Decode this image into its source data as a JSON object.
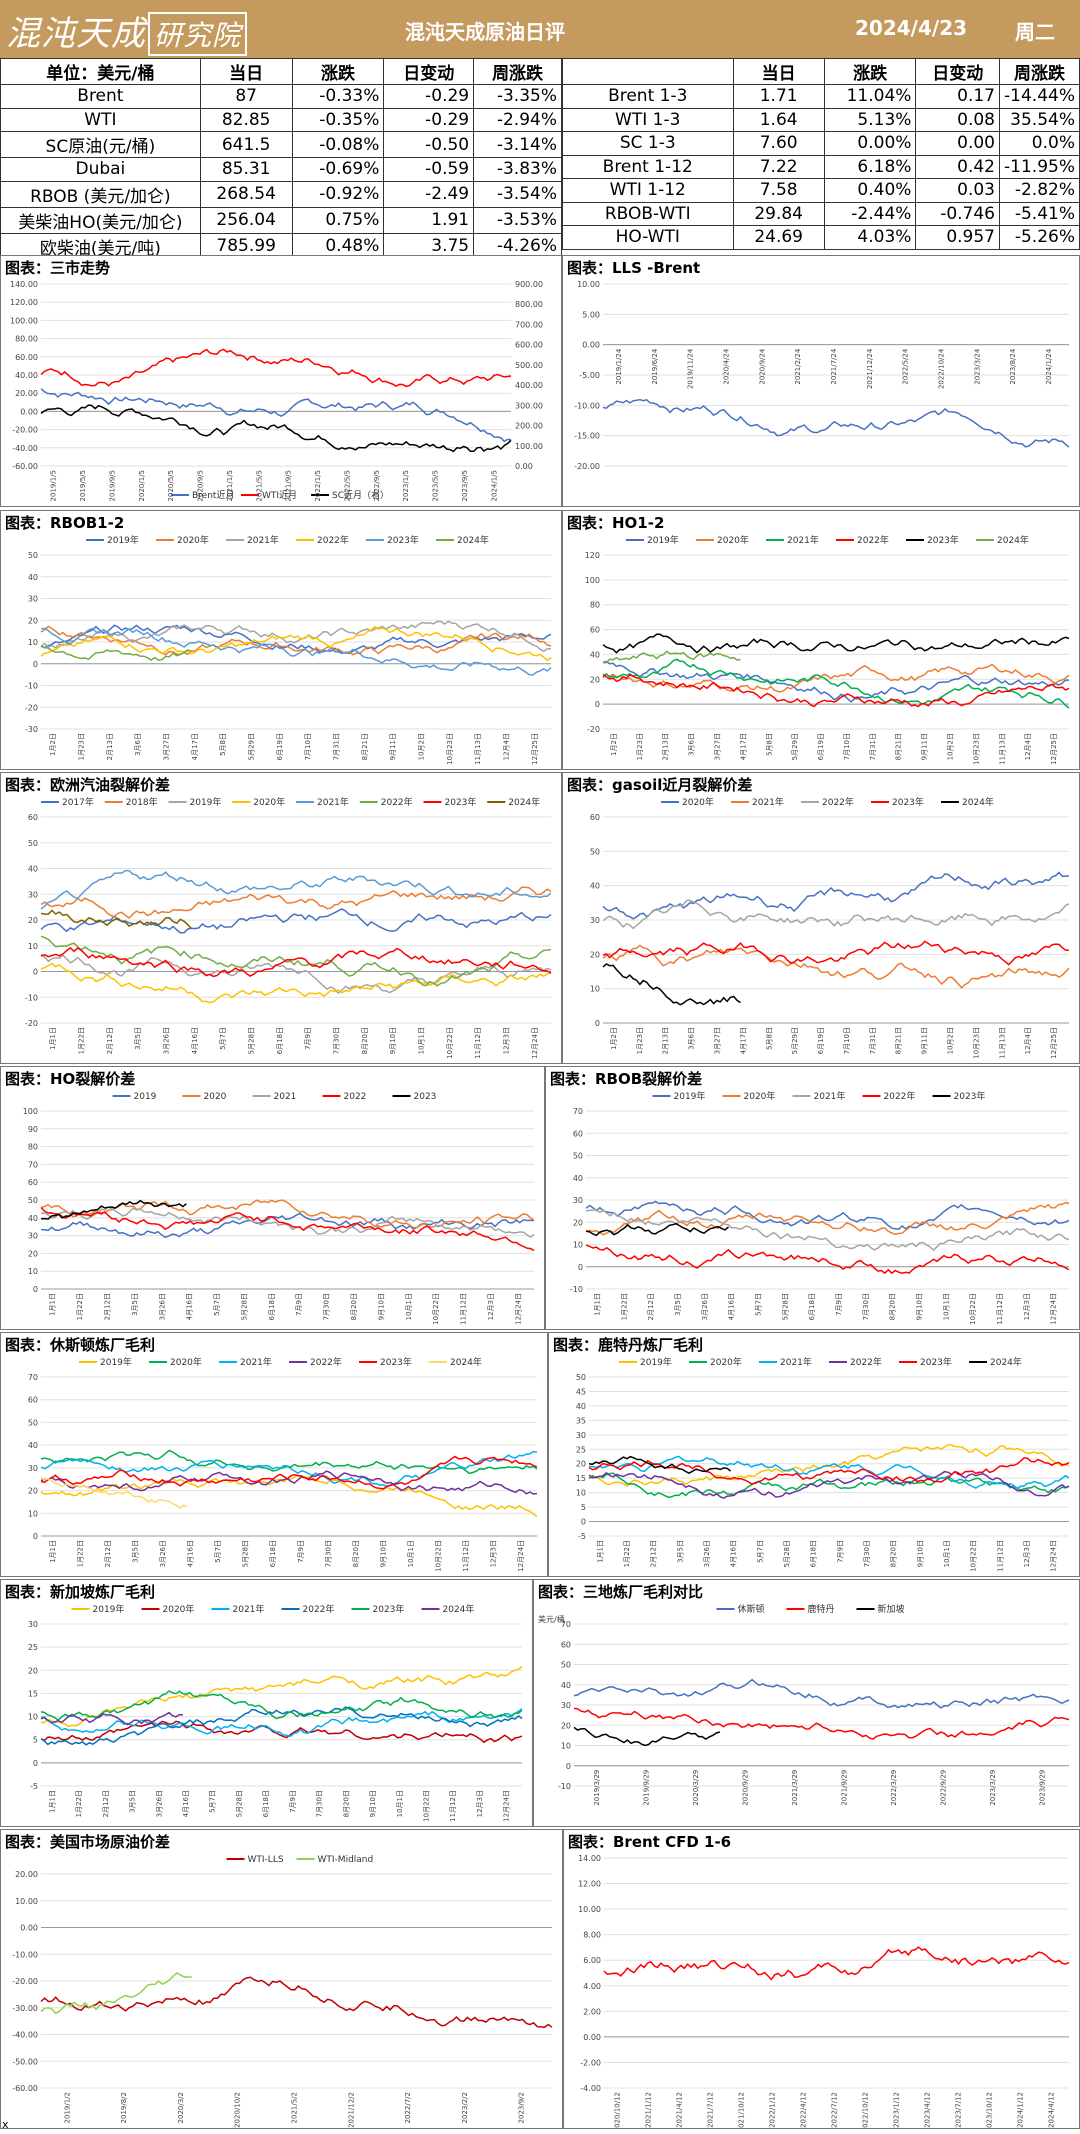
{
  "header": {
    "logo_text": "混沌天成",
    "logo_box": "研究院",
    "title": "混沌天成原油日评",
    "date": "2024/4/23",
    "weekday": "周二"
  },
  "left_table": {
    "headers": [
      "单位：美元/桶",
      "当日",
      "涨跌",
      "日变动",
      "周涨跌"
    ],
    "rows": [
      [
        "Brent",
        "87",
        "-0.33%",
        "-0.29",
        "-3.35%"
      ],
      [
        "WTI",
        "82.85",
        "-0.35%",
        "-0.29",
        "-2.94%"
      ],
      [
        "SC原油(元/桶)",
        "641.5",
        "-0.08%",
        "-0.50",
        "-3.14%"
      ],
      [
        "Dubai",
        "85.31",
        "-0.69%",
        "-0.59",
        "-3.83%"
      ],
      [
        "RBOB (美元/加仑)",
        "268.54",
        "-0.92%",
        "-2.49",
        "-3.54%"
      ],
      [
        "美柴油HO(美元/加仑)",
        "256.04",
        "0.75%",
        "1.91",
        "-3.53%"
      ],
      [
        "欧柴油(美元/吨)",
        "785.99",
        "0.48%",
        "3.75",
        "-4.26%"
      ]
    ]
  },
  "right_table": {
    "headers": [
      "",
      "当日",
      "涨跌",
      "日变动",
      "周涨跌"
    ],
    "rows": [
      [
        "Brent 1-3",
        "1.71",
        "11.04%",
        "0.17",
        "-14.44%"
      ],
      [
        "WTI 1-3",
        "1.64",
        "5.13%",
        "0.08",
        "35.54%"
      ],
      [
        "SC 1-3",
        "7.60",
        "0.00%",
        "0.00",
        "0.0%"
      ],
      [
        "Brent 1-12",
        "7.22",
        "6.18%",
        "0.42",
        "-11.95%"
      ],
      [
        "WTI 1-12",
        "7.58",
        "0.40%",
        "0.03",
        "-2.82%"
      ],
      [
        "RBOB-WTI",
        "29.84",
        "-2.44%",
        "-0.746",
        "-5.41%"
      ],
      [
        "HO-WTI",
        "24.69",
        "4.03%",
        "0.957",
        "-5.26%"
      ]
    ]
  },
  "charts": [
    {
      "name": "chart-three-markets",
      "title": "图表：三市走势",
      "type": "line",
      "ylim": [
        -60,
        140
      ],
      "yticks": [
        "140.00",
        "120.00",
        "100.00",
        "80.00",
        "60.00",
        "40.00",
        "20.00",
        "0.00",
        "-20.00",
        "-40.00",
        "-60.00"
      ],
      "y2ticks": [
        "900.00",
        "800.00",
        "700.00",
        "600.00",
        "500.00",
        "400.00",
        "300.00",
        "200.00",
        "100.00",
        "0.00"
      ],
      "xticks": [
        "2019/1/5",
        "2019/5/5",
        "2019/9/5",
        "2020/1/5",
        "2020/5/5",
        "2020/9/5",
        "2021/1/5",
        "2021/5/5",
        "2021/9/5",
        "2022/1/5",
        "2022/5/5",
        "2022/9/5",
        "2023/1/5",
        "2023/5/5",
        "2023/9/5",
        "2024/1/5"
      ],
      "legend": [
        "Brent近月",
        "WTI近月",
        "SC近月（右）"
      ],
      "colors": [
        "#4472c4",
        "#ff0000",
        "#000000"
      ],
      "series_shape": [
        [
          60,
          58,
          30,
          45,
          65,
          70,
          95,
          110,
          92,
          80,
          84,
          82,
          88
        ],
        [
          55,
          52,
          -10,
          40,
          60,
          67,
          92,
          105,
          88,
          78,
          80,
          78,
          84
        ],
        [
          420,
          400,
          250,
          280,
          350,
          420,
          520,
          700,
          650,
          560,
          600,
          620,
          640
        ]
      ]
    },
    {
      "name": "chart-lls-brent",
      "title": "图表：LLS -Brent",
      "type": "line",
      "ylim": [
        -20,
        10
      ],
      "yticks": [
        "10.00",
        "5.00",
        "0.00",
        "-5.00",
        "-10.00",
        "-15.00",
        "-20.00"
      ],
      "xticks": [
        "2019/1/24",
        "2019/6/24",
        "2019/11/24",
        "2020/4/24",
        "2020/9/24",
        "2021/2/24",
        "2021/7/24",
        "2021/12/24",
        "2022/5/24",
        "2022/10/24",
        "2023/3/24",
        "2023/8/24",
        "2024/1/24"
      ],
      "legend": [],
      "colors": [
        "#4472c4"
      ]
    },
    {
      "name": "chart-rbob-1-2",
      "title": "图表：RBOB1-2",
      "type": "line",
      "ylim": [
        -30,
        50
      ],
      "yticks": [
        "50",
        "40",
        "30",
        "20",
        "10",
        "0",
        "-10",
        "-20",
        "-30"
      ],
      "xticks": [
        "1月2日",
        "1月23日",
        "2月13日",
        "3月6日",
        "3月27日",
        "4月17日",
        "5月8日",
        "5月29日",
        "6月19日",
        "7月10日",
        "7月31日",
        "8月21日",
        "9月11日",
        "10月2日",
        "10月23日",
        "11月13日",
        "12月4日",
        "12月25日"
      ],
      "legend": [
        "2019年",
        "2020年",
        "2021年",
        "2022年",
        "2023年",
        "2024年"
      ],
      "colors": [
        "#4472c4",
        "#ed7d31",
        "#a5a5a5",
        "#ffc000",
        "#5b9bd5",
        "#70ad47"
      ]
    },
    {
      "name": "chart-ho-1-2",
      "title": "图表：HO1-2",
      "type": "line",
      "ylim": [
        -20,
        120
      ],
      "yticks": [
        "120",
        "100",
        "80",
        "60",
        "40",
        "20",
        "0",
        "-20"
      ],
      "xticks": [
        "1月2日",
        "1月23日",
        "2月13日",
        "3月6日",
        "3月27日",
        "4月17日",
        "5月8日",
        "5月29日",
        "6月19日",
        "7月10日",
        "7月31日",
        "8月21日",
        "9月11日",
        "10月2日",
        "10月23日",
        "11月13日",
        "12月4日",
        "12月25日"
      ],
      "legend": [
        "2019年",
        "2020年",
        "2021年",
        "2022年",
        "2023年",
        "2024年"
      ],
      "colors": [
        "#4472c4",
        "#ed7d31",
        "#00b050",
        "#ff0000",
        "#000000",
        "#70ad47"
      ]
    },
    {
      "name": "chart-eu-gasoline-crack",
      "title": "图表：欧洲汽油裂解价差",
      "type": "line",
      "ylim": [
        -20,
        60
      ],
      "yticks": [
        "60",
        "50",
        "40",
        "30",
        "20",
        "10",
        "0",
        "-10",
        "-20"
      ],
      "xticks": [
        "1月1日",
        "1月22日",
        "2月12日",
        "3月5日",
        "3月26日",
        "4月16日",
        "5月7日",
        "5月28日",
        "6月18日",
        "7月9日",
        "7月30日",
        "8月20日",
        "9月10日",
        "10月1日",
        "10月22日",
        "11月12日",
        "12月3日",
        "12月24日"
      ],
      "legend": [
        "2017年",
        "2018年",
        "2019年",
        "2020年",
        "2021年",
        "2022年",
        "2023年",
        "2024年"
      ],
      "colors": [
        "#4472c4",
        "#ed7d31",
        "#a5a5a5",
        "#ffc000",
        "#5b9bd5",
        "#70ad47",
        "#ff0000",
        "#7f6000"
      ]
    },
    {
      "name": "chart-gasoil-crack",
      "title": "图表：gasoil近月裂解价差",
      "type": "line",
      "ylim": [
        0,
        60
      ],
      "yticks": [
        "60",
        "50",
        "40",
        "30",
        "20",
        "10",
        "0"
      ],
      "xticks": [
        "1月2日",
        "1月23日",
        "2月13日",
        "3月6日",
        "3月27日",
        "4月17日",
        "5月8日",
        "5月29日",
        "6月19日",
        "7月10日",
        "7月31日",
        "8月21日",
        "9月11日",
        "10月2日",
        "10月23日",
        "11月13日",
        "12月4日",
        "12月25日"
      ],
      "legend": [
        "2020年",
        "2021年",
        "2022年",
        "2023年",
        "2024年"
      ],
      "colors": [
        "#4472c4",
        "#ed7d31",
        "#a5a5a5",
        "#ff0000",
        "#000000"
      ]
    },
    {
      "name": "chart-ho-crack",
      "title": "图表：HO裂解价差",
      "type": "line",
      "ylim": [
        0,
        100
      ],
      "yticks": [
        "100",
        "90",
        "80",
        "70",
        "60",
        "50",
        "40",
        "30",
        "20",
        "10",
        "0"
      ],
      "xticks": [
        "1月1日",
        "1月22日",
        "2月12日",
        "3月5日",
        "3月26日",
        "4月16日",
        "5月7日",
        "5月28日",
        "6月18日",
        "7月9日",
        "7月30日",
        "8月20日",
        "9月10日",
        "10月1日",
        "10月22日",
        "11月12日",
        "12月3日",
        "12月24日"
      ],
      "legend": [
        "2019",
        "2020",
        "2021",
        "2022",
        "2023"
      ],
      "colors": [
        "#4472c4",
        "#ed7d31",
        "#a5a5a5",
        "#ff0000",
        "#000000"
      ]
    },
    {
      "name": "chart-rbob-crack",
      "title": "图表：RBOB裂解价差",
      "type": "line",
      "ylim": [
        -10,
        70
      ],
      "yticks": [
        "70",
        "60",
        "50",
        "40",
        "30",
        "20",
        "10",
        "0",
        "-10"
      ],
      "xticks": [
        "1月1日",
        "1月22日",
        "2月12日",
        "3月5日",
        "3月26日",
        "4月16日",
        "5月7日",
        "5月28日",
        "6月18日",
        "7月9日",
        "7月30日",
        "8月20日",
        "9月10日",
        "10月1日",
        "10月22日",
        "11月12日",
        "12月3日",
        "12月24日"
      ],
      "legend": [
        "2019年",
        "2020年",
        "2021年",
        "2022年",
        "2023年"
      ],
      "colors": [
        "#4472c4",
        "#ed7d31",
        "#a5a5a5",
        "#ff0000",
        "#000000"
      ]
    },
    {
      "name": "chart-houston-margin",
      "title": "图表：休斯顿炼厂毛利",
      "type": "line",
      "ylim": [
        0,
        70
      ],
      "yticks": [
        "70",
        "60",
        "50",
        "40",
        "30",
        "20",
        "10",
        "0"
      ],
      "xticks": [
        "1月1日",
        "1月22日",
        "2月12日",
        "3月5日",
        "3月26日",
        "4月16日",
        "5月7日",
        "5月28日",
        "6月18日",
        "7月9日",
        "7月30日",
        "8月20日",
        "9月10日",
        "10月1日",
        "10月22日",
        "11月12日",
        "12月3日",
        "12月24日"
      ],
      "legend": [
        "2019年",
        "2020年",
        "2021年",
        "2022年",
        "2023年",
        "2024年"
      ],
      "colors": [
        "#ffc000",
        "#00b050",
        "#00b0f0",
        "#7030a0",
        "#ff0000",
        "#ffd966"
      ]
    },
    {
      "name": "chart-rotterdam-margin",
      "title": "图表：鹿特丹炼厂毛利",
      "type": "line",
      "ylim": [
        -5,
        50
      ],
      "yticks": [
        "50",
        "45",
        "40",
        "35",
        "30",
        "25",
        "20",
        "15",
        "10",
        "5",
        "0",
        "-5"
      ],
      "xticks": [
        "1月1日",
        "1月22日",
        "2月12日",
        "3月5日",
        "3月26日",
        "4月16日",
        "5月7日",
        "5月28日",
        "6月18日",
        "7月9日",
        "7月30日",
        "8月20日",
        "9月10日",
        "10月1日",
        "10月22日",
        "11月12日",
        "12月3日",
        "12月24日"
      ],
      "legend": [
        "2019年",
        "2020年",
        "2021年",
        "2022年",
        "2023年",
        "2024年"
      ],
      "colors": [
        "#ffc000",
        "#00b050",
        "#00b0f0",
        "#7030a0",
        "#ff0000",
        "#000000"
      ]
    },
    {
      "name": "chart-singapore-margin",
      "title": "图表：新加坡炼厂毛利",
      "type": "line",
      "ylim": [
        -5,
        30
      ],
      "yticks": [
        "30",
        "25",
        "20",
        "15",
        "10",
        "5",
        "0",
        "-5"
      ],
      "xticks": [
        "1月1日",
        "1月22日",
        "2月12日",
        "3月5日",
        "3月26日",
        "4月16日",
        "5月7日",
        "5月28日",
        "6月18日",
        "7月9日",
        "7月30日",
        "8月20日",
        "9月10日",
        "10月1日",
        "10月22日",
        "11月12日",
        "12月3日",
        "12月24日"
      ],
      "legend": [
        "2019年",
        "2020年",
        "2021年",
        "2022年",
        "2023年",
        "2024年"
      ],
      "colors": [
        "#ffc000",
        "#c00000",
        "#00b0f0",
        "#0070c0",
        "#00b050",
        "#7030a0"
      ]
    },
    {
      "name": "chart-three-refinery",
      "title": "图表：三地炼厂毛利对比",
      "type": "line",
      "ylim": [
        -10,
        70
      ],
      "yticks": [
        "70",
        "60",
        "50",
        "40",
        "30",
        "20",
        "10",
        "0",
        "-10"
      ],
      "ylabel": "美元/桶",
      "xticks": [
        "2019/3/29",
        "2019/9/29",
        "2020/3/29",
        "2020/9/29",
        "2021/3/29",
        "2021/9/29",
        "2022/3/29",
        "2022/9/29",
        "2023/3/29",
        "2023/9/29"
      ],
      "legend": [
        "休斯顿",
        "鹿特丹",
        "新加坡"
      ],
      "colors": [
        "#4472c4",
        "#ff0000",
        "#000000"
      ]
    },
    {
      "name": "chart-us-crude-spread",
      "title": "图表：美国市场原油价差",
      "type": "line",
      "ylim": [
        -60,
        20
      ],
      "yticks": [
        "20.00",
        "10.00",
        "0.00",
        "-10.00",
        "-20.00",
        "-30.00",
        "-40.00",
        "-50.00",
        "-60.00"
      ],
      "xticks": [
        "2019/1/2",
        "2019/8/2",
        "2020/3/2",
        "2020/10/2",
        "2021/5/2",
        "2021/12/2",
        "2022/7/2",
        "2023/2/2",
        "2023/9/2"
      ],
      "legend": [
        "WTI-LLS",
        "WTI-Midland"
      ],
      "colors": [
        "#c00000",
        "#92d050"
      ]
    },
    {
      "name": "chart-brent-cfd",
      "title": "图表：Brent CFD 1-6",
      "type": "line",
      "ylim": [
        -4,
        14
      ],
      "yticks": [
        "14.00",
        "12.00",
        "10.00",
        "8.00",
        "6.00",
        "4.00",
        "2.00",
        "0.00",
        "-2.00",
        "-4.00"
      ],
      "xticks": [
        "2020/10/12",
        "2021/1/12",
        "2021/4/12",
        "2021/7/12",
        "2021/10/12",
        "2022/1/12",
        "2022/4/12",
        "2022/7/12",
        "2022/10/12",
        "2023/1/12",
        "2023/4/12",
        "2023/7/12",
        "2023/10/12",
        "2024/1/12",
        "2024/4/12"
      ],
      "legend": [],
      "colors": [
        "#ff0000"
      ]
    }
  ],
  "footer": {
    "mark": "x"
  }
}
